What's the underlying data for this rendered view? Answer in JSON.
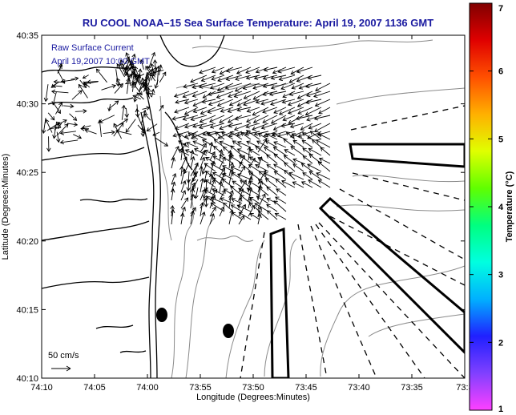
{
  "title": "RU COOL  NOAA–15  Sea Surface Temperature:  April 19, 2007 1136 GMT",
  "legend": {
    "line1": "Raw Surface Current",
    "line2": "April 19,2007 10:00 GMT"
  },
  "scale_label": "50 cm/s",
  "axes": {
    "xlabel": "Longitude (Degrees:Minutes)",
    "ylabel": "Latitude (Degrees:Minutes)",
    "xticks": [
      "74:10",
      "74:05",
      "74:00",
      "73:55",
      "73:50",
      "73:45",
      "73:40",
      "73:35",
      "73:3"
    ],
    "yticks": [
      "40:35",
      "40:30",
      "40:25",
      "40:20",
      "40:15",
      "40:10"
    ]
  },
  "colorbar": {
    "label": "Temperature (°C)",
    "min": 1,
    "max": 7,
    "ticks": [
      "1",
      "2",
      "3",
      "4",
      "5",
      "6",
      "7"
    ],
    "colors": [
      "#ff40ff",
      "#8040ff",
      "#2020ff",
      "#00b0ff",
      "#00ffe0",
      "#00ff80",
      "#60ff00",
      "#e0ff00",
      "#ffb000",
      "#ff5000",
      "#e00000",
      "#800000"
    ]
  },
  "colors": {
    "title": "#1a1aa0",
    "coast": "#000000",
    "bathymetry": "#808080",
    "vectors": "#000000"
  }
}
